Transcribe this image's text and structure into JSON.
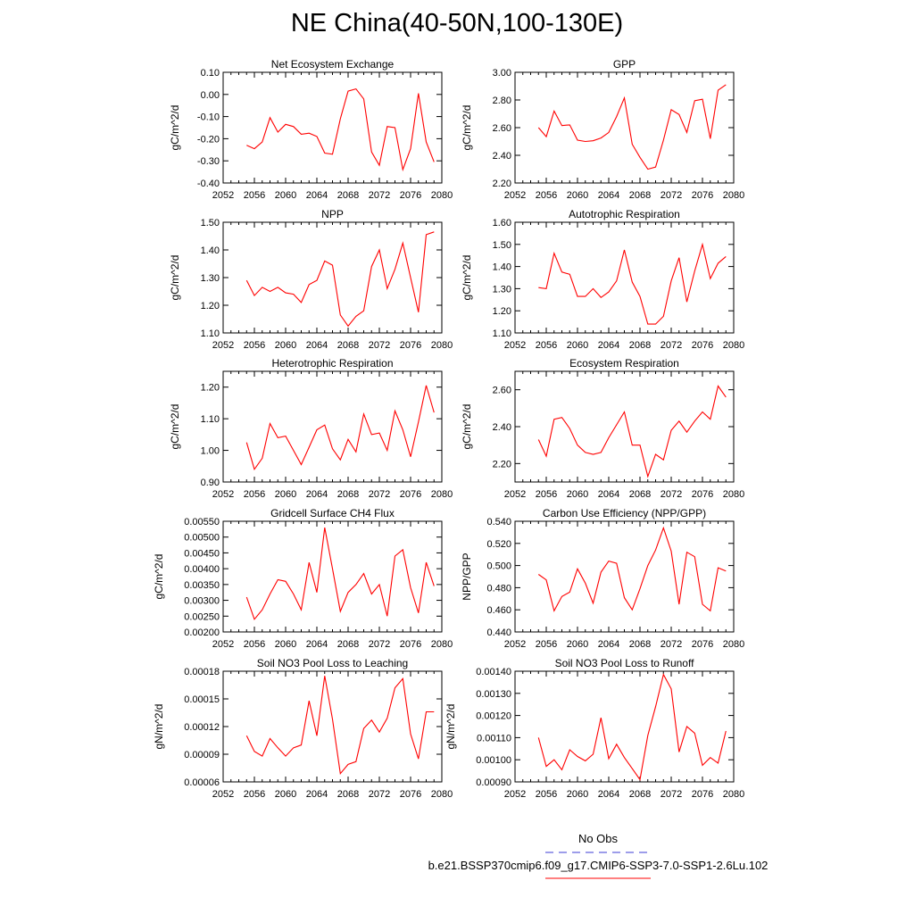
{
  "figure": {
    "title": "NE China(40-50N,100-130E)"
  },
  "legend": {
    "entries": [
      {
        "label": "No Obs",
        "color": "#3b3bd6",
        "style": "dashed"
      },
      {
        "label": "b.e21.BSSP370cmip6.f09_g17.CMIP6-SSP3-7.0-SSP1-2.6Lu.102",
        "color": "#ff0000",
        "style": "solid"
      }
    ]
  },
  "line_color": "#ff0000",
  "chart_data": [
    {
      "type": "line",
      "title": "Net Ecosystem Exchange",
      "xlabel": "",
      "ylabel": "gC/m^2/d",
      "xlim": [
        2052,
        2080
      ],
      "xticks": [
        2052,
        2056,
        2060,
        2064,
        2068,
        2072,
        2076,
        2080
      ],
      "ylim": [
        -0.4,
        0.1
      ],
      "yticks": [
        "0.10",
        "0.00",
        "-0.10",
        "-0.20",
        "-0.30",
        "-0.40"
      ],
      "x": [
        2055,
        2056,
        2057,
        2058,
        2059,
        2060,
        2061,
        2062,
        2063,
        2064,
        2065,
        2066,
        2067,
        2068,
        2069,
        2070,
        2071,
        2072,
        2073,
        2074,
        2075,
        2076,
        2077,
        2078,
        2079
      ],
      "values": [
        -0.23,
        -0.245,
        -0.215,
        -0.105,
        -0.17,
        -0.135,
        -0.145,
        -0.18,
        -0.175,
        -0.19,
        -0.265,
        -0.27,
        -0.11,
        0.015,
        0.025,
        -0.02,
        -0.26,
        -0.32,
        -0.145,
        -0.15,
        -0.34,
        -0.245,
        0.005,
        -0.215,
        -0.305
      ]
    },
    {
      "type": "line",
      "title": "GPP",
      "xlabel": "",
      "ylabel": "gC/m^2/d",
      "xlim": [
        2052,
        2080
      ],
      "xticks": [
        2052,
        2056,
        2060,
        2064,
        2068,
        2072,
        2076,
        2080
      ],
      "ylim": [
        2.2,
        3.0
      ],
      "yticks": [
        "3.00",
        "2.80",
        "2.60",
        "2.40",
        "2.20"
      ],
      "x": [
        2055,
        2056,
        2057,
        2058,
        2059,
        2060,
        2061,
        2062,
        2063,
        2064,
        2065,
        2066,
        2067,
        2068,
        2069,
        2070,
        2071,
        2072,
        2073,
        2074,
        2075,
        2076,
        2077,
        2078,
        2079
      ],
      "values": [
        2.6,
        2.535,
        2.72,
        2.615,
        2.62,
        2.51,
        2.5,
        2.505,
        2.525,
        2.565,
        2.68,
        2.815,
        2.48,
        2.385,
        2.3,
        2.315,
        2.51,
        2.73,
        2.695,
        2.565,
        2.795,
        2.805,
        2.52,
        2.87,
        2.91
      ]
    },
    {
      "type": "line",
      "title": "NPP",
      "xlabel": "",
      "ylabel": "gC/m^2/d",
      "xlim": [
        2052,
        2080
      ],
      "xticks": [
        2052,
        2056,
        2060,
        2064,
        2068,
        2072,
        2076,
        2080
      ],
      "ylim": [
        1.1,
        1.5
      ],
      "yticks": [
        "1.50",
        "1.40",
        "1.30",
        "1.20",
        "1.10"
      ],
      "x": [
        2055,
        2056,
        2057,
        2058,
        2059,
        2060,
        2061,
        2062,
        2063,
        2064,
        2065,
        2066,
        2067,
        2068,
        2069,
        2070,
        2071,
        2072,
        2073,
        2074,
        2075,
        2076,
        2077,
        2078,
        2079
      ],
      "values": [
        1.29,
        1.235,
        1.265,
        1.25,
        1.265,
        1.245,
        1.24,
        1.21,
        1.275,
        1.29,
        1.36,
        1.345,
        1.165,
        1.125,
        1.16,
        1.18,
        1.34,
        1.4,
        1.26,
        1.33,
        1.425,
        1.3,
        1.175,
        1.455,
        1.465
      ]
    },
    {
      "type": "line",
      "title": "Autotrophic Respiration",
      "xlabel": "",
      "ylabel": "gC/m^2/d",
      "xlim": [
        2052,
        2080
      ],
      "xticks": [
        2052,
        2056,
        2060,
        2064,
        2068,
        2072,
        2076,
        2080
      ],
      "ylim": [
        1.1,
        1.6
      ],
      "yticks": [
        "1.60",
        "1.50",
        "1.40",
        "1.30",
        "1.20",
        "1.10"
      ],
      "x": [
        2055,
        2056,
        2057,
        2058,
        2059,
        2060,
        2061,
        2062,
        2063,
        2064,
        2065,
        2066,
        2067,
        2068,
        2069,
        2070,
        2071,
        2072,
        2073,
        2074,
        2075,
        2076,
        2077,
        2078,
        2079
      ],
      "values": [
        1.305,
        1.3,
        1.46,
        1.375,
        1.365,
        1.265,
        1.265,
        1.3,
        1.26,
        1.285,
        1.335,
        1.475,
        1.33,
        1.265,
        1.14,
        1.14,
        1.175,
        1.335,
        1.44,
        1.24,
        1.38,
        1.5,
        1.345,
        1.415,
        1.445
      ]
    },
    {
      "type": "line",
      "title": "Heterotrophic Respiration",
      "xlabel": "",
      "ylabel": "gC/m^2/d",
      "xlim": [
        2052,
        2080
      ],
      "xticks": [
        2052,
        2056,
        2060,
        2064,
        2068,
        2072,
        2076,
        2080
      ],
      "ylim": [
        0.9,
        1.25
      ],
      "yticks": [
        "1.20",
        "1.10",
        "1.00",
        "0.90"
      ],
      "ytick_values": [
        1.2,
        1.1,
        1.0,
        0.9
      ],
      "x": [
        2055,
        2056,
        2057,
        2058,
        2059,
        2060,
        2061,
        2062,
        2063,
        2064,
        2065,
        2066,
        2067,
        2068,
        2069,
        2070,
        2071,
        2072,
        2073,
        2074,
        2075,
        2076,
        2077,
        2078,
        2079
      ],
      "values": [
        1.025,
        0.94,
        0.975,
        1.085,
        1.04,
        1.045,
        1.0,
        0.955,
        1.01,
        1.065,
        1.08,
        1.005,
        0.97,
        1.035,
        0.995,
        1.115,
        1.05,
        1.055,
        1.0,
        1.125,
        1.065,
        0.98,
        1.09,
        1.205,
        1.12
      ]
    },
    {
      "type": "line",
      "title": "Ecosystem Respiration",
      "xlabel": "",
      "ylabel": "gC/m^2/d",
      "xlim": [
        2052,
        2080
      ],
      "xticks": [
        2052,
        2056,
        2060,
        2064,
        2068,
        2072,
        2076,
        2080
      ],
      "ylim": [
        2.1,
        2.7
      ],
      "yticks": [
        "2.60",
        "2.40",
        "2.20"
      ],
      "ytick_values": [
        2.6,
        2.4,
        2.2
      ],
      "x": [
        2055,
        2056,
        2057,
        2058,
        2059,
        2060,
        2061,
        2062,
        2063,
        2064,
        2065,
        2066,
        2067,
        2068,
        2069,
        2070,
        2071,
        2072,
        2073,
        2074,
        2075,
        2076,
        2077,
        2078,
        2079
      ],
      "values": [
        2.33,
        2.24,
        2.44,
        2.45,
        2.39,
        2.3,
        2.26,
        2.25,
        2.26,
        2.34,
        2.41,
        2.48,
        2.3,
        2.3,
        2.13,
        2.25,
        2.22,
        2.38,
        2.43,
        2.37,
        2.43,
        2.48,
        2.44,
        2.62,
        2.56
      ]
    },
    {
      "type": "line",
      "title": "Gridcell Surface CH4 Flux",
      "xlabel": "",
      "ylabel": "gC/m^2/d",
      "xlim": [
        2052,
        2080
      ],
      "xticks": [
        2052,
        2056,
        2060,
        2064,
        2068,
        2072,
        2076,
        2080
      ],
      "ylim": [
        0.002,
        0.0055
      ],
      "yticks": [
        "0.00550",
        "0.00500",
        "0.00450",
        "0.00400",
        "0.00350",
        "0.00300",
        "0.00250",
        "0.00200"
      ],
      "x": [
        2055,
        2056,
        2057,
        2058,
        2059,
        2060,
        2061,
        2062,
        2063,
        2064,
        2065,
        2066,
        2067,
        2068,
        2069,
        2070,
        2071,
        2072,
        2073,
        2074,
        2075,
        2076,
        2077,
        2078,
        2079
      ],
      "values": [
        0.0031,
        0.0024,
        0.0027,
        0.0032,
        0.00365,
        0.0036,
        0.0032,
        0.0027,
        0.0042,
        0.00325,
        0.0053,
        0.004,
        0.00265,
        0.00325,
        0.0035,
        0.00385,
        0.0032,
        0.0035,
        0.0025,
        0.0044,
        0.0046,
        0.0034,
        0.0026,
        0.0042,
        0.00345
      ]
    },
    {
      "type": "line",
      "title": "Carbon Use Efficiency (NPP/GPP)",
      "xlabel": "",
      "ylabel": "NPP/GPP",
      "xlim": [
        2052,
        2080
      ],
      "xticks": [
        2052,
        2056,
        2060,
        2064,
        2068,
        2072,
        2076,
        2080
      ],
      "ylim": [
        0.44,
        0.54
      ],
      "yticks": [
        "0.540",
        "0.520",
        "0.500",
        "0.480",
        "0.460",
        "0.440"
      ],
      "x": [
        2055,
        2056,
        2057,
        2058,
        2059,
        2060,
        2061,
        2062,
        2063,
        2064,
        2065,
        2066,
        2067,
        2068,
        2069,
        2070,
        2071,
        2072,
        2073,
        2074,
        2075,
        2076,
        2077,
        2078,
        2079
      ],
      "values": [
        0.492,
        0.487,
        0.459,
        0.472,
        0.476,
        0.497,
        0.484,
        0.466,
        0.494,
        0.504,
        0.502,
        0.471,
        0.46,
        0.479,
        0.5,
        0.514,
        0.534,
        0.513,
        0.465,
        0.512,
        0.508,
        0.465,
        0.459,
        0.498,
        0.495
      ]
    },
    {
      "type": "line",
      "title": "Soil NO3 Pool Loss to Leaching",
      "xlabel": "",
      "ylabel": "gN/m^2/d",
      "xlim": [
        2052,
        2080
      ],
      "xticks": [
        2052,
        2056,
        2060,
        2064,
        2068,
        2072,
        2076,
        2080
      ],
      "ylim": [
        6e-05,
        0.00018
      ],
      "yticks": [
        "0.00018",
        "0.00015",
        "0.00012",
        "0.00009",
        "0.00006"
      ],
      "ytick_values": [
        0.00018,
        0.00015,
        0.00012,
        9e-05,
        6e-05
      ],
      "x": [
        2055,
        2056,
        2057,
        2058,
        2059,
        2060,
        2061,
        2062,
        2063,
        2064,
        2065,
        2066,
        2067,
        2068,
        2069,
        2070,
        2071,
        2072,
        2073,
        2074,
        2075,
        2076,
        2077,
        2078,
        2079
      ],
      "values": [
        0.00011,
        9.3e-05,
        8.8e-05,
        0.000107,
        9.7e-05,
        8.8e-05,
        9.7e-05,
        0.0001,
        0.000148,
        0.00011,
        0.000175,
        0.000128,
        6.9e-05,
        7.9e-05,
        8.2e-05,
        0.000118,
        0.000127,
        0.000114,
        0.000129,
        0.000162,
        0.000172,
        0.000112,
        8.5e-05,
        0.000136,
        0.000136
      ]
    },
    {
      "type": "line",
      "title": "Soil NO3 Pool Loss to Runoff",
      "xlabel": "",
      "ylabel": "gN/m^2/d",
      "xlim": [
        2052,
        2080
      ],
      "xticks": [
        2052,
        2056,
        2060,
        2064,
        2068,
        2072,
        2076,
        2080
      ],
      "ylim": [
        0.0009,
        0.0014
      ],
      "yticks": [
        "0.00140",
        "0.00130",
        "0.00120",
        "0.00110",
        "0.00100",
        "0.00090"
      ],
      "x": [
        2055,
        2056,
        2057,
        2058,
        2059,
        2060,
        2061,
        2062,
        2063,
        2064,
        2065,
        2066,
        2067,
        2068,
        2069,
        2070,
        2071,
        2072,
        2073,
        2074,
        2075,
        2076,
        2077,
        2078,
        2079
      ],
      "values": [
        0.0011,
        0.00097,
        0.001,
        0.000955,
        0.001045,
        0.001015,
        0.000995,
        0.001025,
        0.00119,
        0.001005,
        0.00107,
        0.00101,
        0.00096,
        0.00091,
        0.00111,
        0.00124,
        0.001385,
        0.00132,
        0.001035,
        0.00115,
        0.00112,
        0.000975,
        0.00101,
        0.000985,
        0.00113
      ]
    }
  ]
}
